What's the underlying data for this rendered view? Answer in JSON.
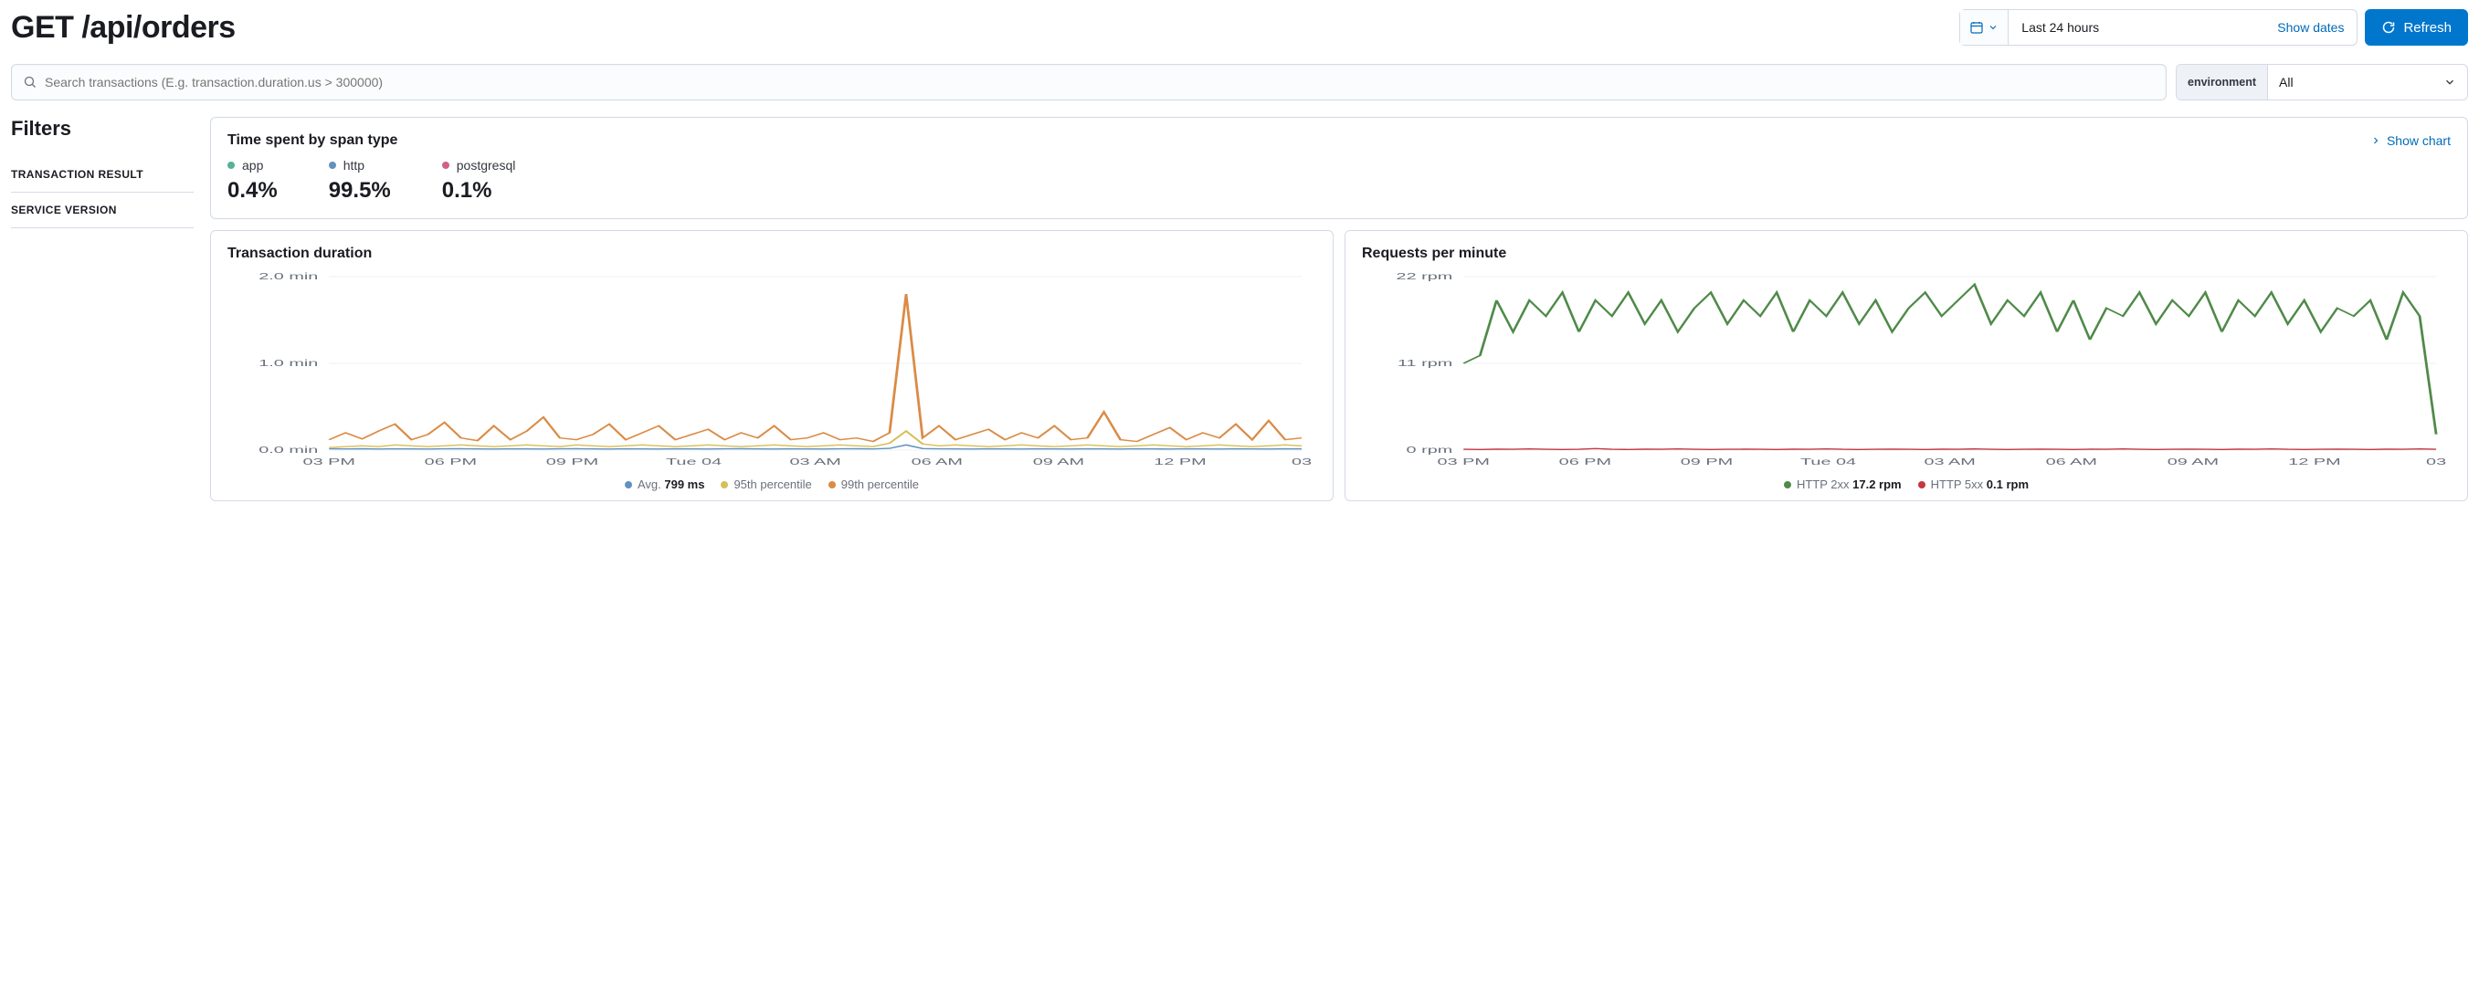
{
  "header": {
    "title": "GET /api/orders",
    "date_range": "Last 24 hours",
    "show_dates": "Show dates",
    "refresh": "Refresh"
  },
  "search": {
    "placeholder": "Search transactions (E.g. transaction.duration.us > 300000)"
  },
  "environment": {
    "label": "environment",
    "value": "All"
  },
  "sidebar": {
    "title": "Filters",
    "items": [
      "TRANSACTION RESULT",
      "SERVICE VERSION"
    ]
  },
  "span_type_panel": {
    "title": "Time spent by span type",
    "show_chart": "Show chart",
    "items": [
      {
        "label": "app",
        "value": "0.4%",
        "color": "#54b399"
      },
      {
        "label": "http",
        "value": "99.5%",
        "color": "#6092c0"
      },
      {
        "label": "postgresql",
        "value": "0.1%",
        "color": "#d36086"
      }
    ]
  },
  "duration_chart": {
    "type": "line",
    "title": "Transaction duration",
    "y_ticks": [
      {
        "label": "0.0 min",
        "value": 0
      },
      {
        "label": "1.0 min",
        "value": 1.0
      },
      {
        "label": "2.0 min",
        "value": 2.0
      }
    ],
    "ylim": [
      0,
      2.0
    ],
    "x_labels": [
      "03 PM",
      "06 PM",
      "09 PM",
      "Tue 04",
      "03 AM",
      "06 AM",
      "09 AM",
      "12 PM",
      "03"
    ],
    "background_color": "#ffffff",
    "grid_color": "#eef2f7",
    "series": [
      {
        "name": "Avg.",
        "value_label": "799 ms",
        "color": "#6092c0",
        "data": [
          0.015,
          0.014,
          0.016,
          0.013,
          0.015,
          0.014,
          0.013,
          0.015,
          0.016,
          0.014,
          0.013,
          0.015,
          0.014,
          0.013,
          0.015,
          0.016,
          0.014,
          0.013,
          0.015,
          0.014,
          0.013,
          0.015,
          0.014,
          0.013,
          0.015,
          0.016,
          0.014,
          0.013,
          0.015,
          0.014,
          0.013,
          0.015,
          0.016,
          0.014,
          0.02,
          0.06,
          0.018,
          0.015,
          0.014,
          0.013,
          0.015,
          0.014,
          0.013,
          0.015,
          0.014,
          0.013,
          0.015,
          0.014,
          0.013,
          0.015,
          0.014,
          0.013,
          0.015,
          0.014,
          0.013,
          0.015,
          0.014,
          0.013,
          0.015,
          0.014
        ]
      },
      {
        "name": "95th percentile",
        "value_label": "",
        "color": "#d6bf57",
        "data": [
          0.03,
          0.04,
          0.05,
          0.04,
          0.06,
          0.05,
          0.04,
          0.05,
          0.06,
          0.05,
          0.04,
          0.05,
          0.06,
          0.05,
          0.04,
          0.06,
          0.05,
          0.04,
          0.05,
          0.06,
          0.05,
          0.04,
          0.05,
          0.06,
          0.05,
          0.04,
          0.05,
          0.06,
          0.05,
          0.04,
          0.05,
          0.06,
          0.05,
          0.04,
          0.08,
          0.22,
          0.07,
          0.05,
          0.06,
          0.05,
          0.04,
          0.05,
          0.06,
          0.05,
          0.04,
          0.05,
          0.06,
          0.05,
          0.04,
          0.05,
          0.06,
          0.05,
          0.04,
          0.05,
          0.06,
          0.05,
          0.04,
          0.05,
          0.06,
          0.05
        ]
      },
      {
        "name": "99th percentile",
        "value_label": "",
        "color": "#da8b45",
        "data": [
          0.12,
          0.2,
          0.13,
          0.22,
          0.3,
          0.12,
          0.18,
          0.32,
          0.14,
          0.11,
          0.28,
          0.12,
          0.22,
          0.38,
          0.14,
          0.12,
          0.18,
          0.3,
          0.12,
          0.2,
          0.28,
          0.12,
          0.18,
          0.24,
          0.12,
          0.2,
          0.14,
          0.28,
          0.12,
          0.14,
          0.2,
          0.12,
          0.14,
          0.1,
          0.2,
          1.8,
          0.14,
          0.28,
          0.12,
          0.18,
          0.24,
          0.12,
          0.2,
          0.14,
          0.28,
          0.12,
          0.14,
          0.44,
          0.12,
          0.1,
          0.18,
          0.26,
          0.12,
          0.2,
          0.14,
          0.3,
          0.12,
          0.34,
          0.12,
          0.14
        ]
      }
    ],
    "legend": [
      {
        "label": "Avg.",
        "extra": "799 ms",
        "color": "#6092c0"
      },
      {
        "label": "95th percentile",
        "extra": "",
        "color": "#d6bf57"
      },
      {
        "label": "99th percentile",
        "extra": "",
        "color": "#da8b45"
      }
    ]
  },
  "rpm_chart": {
    "type": "line",
    "title": "Requests per minute",
    "y_ticks": [
      {
        "label": "0 rpm",
        "value": 0
      },
      {
        "label": "11 rpm",
        "value": 11
      },
      {
        "label": "22 rpm",
        "value": 22
      }
    ],
    "ylim": [
      0,
      22
    ],
    "x_labels": [
      "03 PM",
      "06 PM",
      "09 PM",
      "Tue 04",
      "03 AM",
      "06 AM",
      "09 AM",
      "12 PM",
      "03"
    ],
    "background_color": "#ffffff",
    "grid_color": "#eef2f7",
    "series": [
      {
        "name": "HTTP 2xx",
        "value_label": "17.2 rpm",
        "color": "#4f8a49",
        "data": [
          11,
          12,
          19,
          15,
          19,
          17,
          20,
          15,
          19,
          17,
          20,
          16,
          19,
          15,
          18,
          20,
          16,
          19,
          17,
          20,
          15,
          19,
          17,
          20,
          16,
          19,
          15,
          18,
          20,
          17,
          19,
          21,
          16,
          19,
          17,
          20,
          15,
          19,
          14,
          18,
          17,
          20,
          16,
          19,
          17,
          20,
          15,
          19,
          17,
          20,
          16,
          19,
          15,
          18,
          17,
          19,
          14,
          20,
          17,
          2
        ]
      },
      {
        "name": "HTTP 5xx",
        "value_label": "0.1 rpm",
        "color": "#c43842",
        "data": [
          0.1,
          0.08,
          0.12,
          0.1,
          0.15,
          0.1,
          0.08,
          0.1,
          0.2,
          0.1,
          0.08,
          0.12,
          0.1,
          0.15,
          0.1,
          0.08,
          0.1,
          0.12,
          0.1,
          0.08,
          0.12,
          0.1,
          0.15,
          0.1,
          0.08,
          0.1,
          0.12,
          0.1,
          0.08,
          0.12,
          0.1,
          0.15,
          0.1,
          0.08,
          0.1,
          0.12,
          0.1,
          0.08,
          0.12,
          0.1,
          0.15,
          0.1,
          0.08,
          0.1,
          0.12,
          0.1,
          0.08,
          0.12,
          0.1,
          0.15,
          0.1,
          0.08,
          0.1,
          0.12,
          0.1,
          0.08,
          0.12,
          0.1,
          0.15,
          0.1
        ]
      }
    ],
    "legend": [
      {
        "label": "HTTP 2xx",
        "extra": "17.2 rpm",
        "color": "#4f8a49"
      },
      {
        "label": "HTTP 5xx",
        "extra": "0.1 rpm",
        "color": "#c43842"
      }
    ]
  }
}
